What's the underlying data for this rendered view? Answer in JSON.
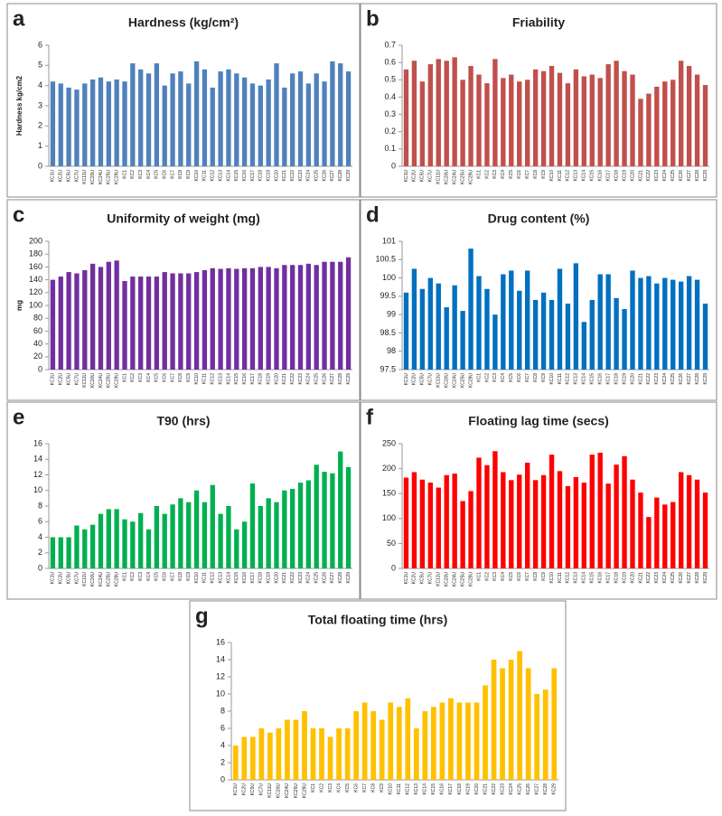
{
  "chart_data": [
    {
      "type": "bar",
      "panel": "a",
      "title": "Hardness (kg/cm²)",
      "y_label": "Hardness kg/cm2",
      "color": "#4f81bd",
      "categories": [
        "KC1U",
        "KC2U",
        "KC5U",
        "KC7U",
        "KC11U",
        "KC20U",
        "KC24U",
        "KC25U",
        "KC29U",
        "KC1",
        "KC2",
        "KC3",
        "KC4",
        "KC5",
        "KC6",
        "KC7",
        "KC8",
        "KC9",
        "KC10",
        "KC11",
        "KC12",
        "KC13",
        "KC14",
        "KC15",
        "KC16",
        "KC17",
        "KC18",
        "KC19",
        "KC20",
        "KC21",
        "KC22",
        "KC23",
        "KC24",
        "KC25",
        "KC26",
        "KC27",
        "KC28",
        "KC29"
      ],
      "values": [
        4.2,
        4.1,
        3.9,
        3.8,
        4.1,
        4.3,
        4.4,
        4.2,
        4.3,
        4.2,
        5.1,
        4.8,
        4.6,
        5.1,
        4.0,
        4.6,
        4.7,
        4.1,
        5.2,
        4.8,
        3.9,
        4.7,
        4.8,
        4.6,
        4.4,
        4.1,
        4.0,
        4.3,
        5.1,
        3.9,
        4.6,
        4.7,
        4.1,
        4.6,
        4.2,
        5.2,
        5.1,
        4.7
      ],
      "ylim": [
        0,
        6
      ],
      "yticks": [
        0,
        1,
        2,
        3,
        4,
        5,
        6
      ]
    },
    {
      "type": "bar",
      "panel": "b",
      "title": "Friability",
      "color": "#c0504d",
      "categories": [
        "KC1U",
        "KC2U",
        "KC5U",
        "KC7U",
        "KC11U",
        "KC20U",
        "KC24U",
        "KC25U",
        "KC29U",
        "KC1",
        "KC2",
        "KC3",
        "KC4",
        "KC5",
        "KC6",
        "KC7",
        "KC8",
        "KC9",
        "KC10",
        "KC11",
        "KC12",
        "KC13",
        "KC14",
        "KC15",
        "KC16",
        "KC17",
        "KC18",
        "KC19",
        "KC20",
        "KC21",
        "KC22",
        "KC23",
        "KC24",
        "KC25",
        "KC26",
        "KC27",
        "KC28",
        "KC29"
      ],
      "values": [
        0.56,
        0.61,
        0.49,
        0.59,
        0.62,
        0.61,
        0.63,
        0.5,
        0.58,
        0.53,
        0.48,
        0.62,
        0.51,
        0.53,
        0.49,
        0.5,
        0.56,
        0.55,
        0.58,
        0.54,
        0.48,
        0.56,
        0.52,
        0.53,
        0.51,
        0.59,
        0.61,
        0.55,
        0.53,
        0.39,
        0.42,
        0.46,
        0.49,
        0.5,
        0.61,
        0.58,
        0.53,
        0.47
      ],
      "ylim": [
        0,
        0.7
      ],
      "yticks": [
        0,
        0.1,
        0.2,
        0.3,
        0.4,
        0.5,
        0.6,
        0.7
      ]
    },
    {
      "type": "bar",
      "panel": "c",
      "title": "Uniformity of weight (mg)",
      "y_label": "mg",
      "color": "#7030a0",
      "categories": [
        "KC1U",
        "KC2U",
        "KC5U",
        "KC7U",
        "KC11U",
        "KC20U",
        "KC24U",
        "KC25U",
        "KC29U",
        "KC1",
        "KC2",
        "KC3",
        "KC4",
        "KC5",
        "KC6",
        "KC7",
        "KC8",
        "KC9",
        "KC10",
        "KC11",
        "KC12",
        "KC13",
        "KC14",
        "KC15",
        "KC16",
        "KC17",
        "KC18",
        "KC19",
        "KC20",
        "KC21",
        "KC22",
        "KC23",
        "KC24",
        "KC25",
        "KC26",
        "KC27",
        "KC28",
        "KC29"
      ],
      "values": [
        140,
        145,
        152,
        150,
        155,
        165,
        160,
        168,
        170,
        138,
        145,
        145,
        145,
        145,
        152,
        150,
        150,
        150,
        152,
        155,
        158,
        157,
        158,
        157,
        158,
        158,
        160,
        160,
        158,
        163,
        163,
        163,
        165,
        163,
        168,
        168,
        168,
        175
      ],
      "ylim": [
        0,
        200
      ],
      "yticks": [
        0,
        20,
        40,
        60,
        80,
        100,
        120,
        140,
        160,
        180,
        200
      ]
    },
    {
      "type": "bar",
      "panel": "d",
      "title": "Drug content (%)",
      "color": "#0070c0",
      "categories": [
        "KC1U",
        "KC2U",
        "KC5U",
        "KC7U",
        "KC11U",
        "KC20U",
        "KC24U",
        "KC25U",
        "KC29U",
        "KC1",
        "KC2",
        "KC3",
        "KC4",
        "KC5",
        "KC6",
        "KC7",
        "KC8",
        "KC9",
        "KC10",
        "KC11",
        "KC12",
        "KC13",
        "KC14",
        "KC15",
        "KC16",
        "KC17",
        "KC18",
        "KC19",
        "KC20",
        "KC21",
        "KC22",
        "KC23",
        "KC24",
        "KC25",
        "KC26",
        "KC27",
        "KC28",
        "KC29"
      ],
      "values": [
        99.6,
        100.25,
        99.7,
        100.0,
        99.85,
        99.2,
        99.8,
        99.1,
        100.8,
        100.05,
        99.7,
        99.0,
        100.1,
        100.2,
        99.65,
        100.2,
        99.4,
        99.6,
        99.4,
        100.25,
        99.3,
        100.4,
        98.8,
        99.4,
        100.1,
        100.1,
        99.45,
        99.15,
        100.2,
        100.0,
        100.05,
        99.85,
        100.0,
        99.95,
        99.9,
        100.05,
        99.95,
        99.3
      ],
      "ylim": [
        97.5,
        101
      ],
      "yticks": [
        97.5,
        98,
        98.5,
        99,
        99.5,
        100,
        100.5,
        101
      ]
    },
    {
      "type": "bar",
      "panel": "e",
      "title": "T90 (hrs)",
      "color": "#00b050",
      "categories": [
        "KC1U",
        "KC2U",
        "KC5U",
        "KC7U",
        "KC11U",
        "KC20U",
        "KC24U",
        "KC25U",
        "KC29U",
        "KC1",
        "KC2",
        "KC3",
        "KC4",
        "KC5",
        "KC6",
        "KC7",
        "KC8",
        "KC9",
        "KC10",
        "KC11",
        "KC12",
        "KC13",
        "KC14",
        "KC15",
        "KC16",
        "KC17",
        "KC18",
        "KC19",
        "KC20",
        "KC21",
        "KC22",
        "KC23",
        "KC24",
        "KC25",
        "KC26",
        "KC27",
        "KC28",
        "KC29"
      ],
      "values": [
        4,
        4,
        4,
        5.5,
        5,
        5.6,
        7,
        7.6,
        7.6,
        6.3,
        6,
        7.1,
        5,
        8,
        7,
        8.2,
        9,
        8.5,
        10,
        8.5,
        10.7,
        7,
        8,
        5,
        6,
        10.9,
        8,
        9,
        8.5,
        10,
        10.2,
        11,
        11.3,
        13.3,
        12.4,
        12.2,
        15,
        13
      ],
      "ylim": [
        0,
        16
      ],
      "yticks": [
        0,
        2,
        4,
        6,
        8,
        10,
        12,
        14,
        16
      ]
    },
    {
      "type": "bar",
      "panel": "f",
      "title": "Floating lag time (secs)",
      "color": "#ff0000",
      "categories": [
        "KC1U",
        "KC2U",
        "KC5U",
        "KC7U",
        "KC11U",
        "KC20U",
        "KC24U",
        "KC25U",
        "KC29U",
        "KC1",
        "KC2",
        "KC3",
        "KC4",
        "KC5",
        "KC6",
        "KC7",
        "KC8",
        "KC9",
        "KC10",
        "KC11",
        "KC12",
        "KC13",
        "KC14",
        "KC15",
        "KC16",
        "KC17",
        "KC18",
        "KC19",
        "KC20",
        "KC21",
        "KC22",
        "KC23",
        "KC24",
        "KC25",
        "KC26",
        "KC27",
        "KC28",
        "KC29"
      ],
      "values": [
        182,
        193,
        178,
        172,
        162,
        187,
        190,
        135,
        155,
        222,
        207,
        235,
        193,
        177,
        188,
        212,
        177,
        187,
        228,
        195,
        165,
        183,
        172,
        228,
        232,
        170,
        208,
        225,
        178,
        152,
        103,
        142,
        128,
        133,
        193,
        187,
        178,
        152
      ],
      "ylim": [
        0,
        250
      ],
      "yticks": [
        0,
        50,
        100,
        150,
        200,
        250
      ]
    },
    {
      "type": "bar",
      "panel": "g",
      "title": "Total floating time (hrs)",
      "color": "#ffc000",
      "categories": [
        "KC1U",
        "KC2U",
        "KC5U",
        "KC7U",
        "KC11U",
        "KC20U",
        "KC24U",
        "KC25U",
        "KC29U",
        "KC1",
        "KC2",
        "KC3",
        "KC4",
        "KC5",
        "KC6",
        "KC7",
        "KC8",
        "KC9",
        "KC10",
        "KC11",
        "KC12",
        "KC13",
        "KC14",
        "KC15",
        "KC16",
        "KC17",
        "KC18",
        "KC19",
        "KC20",
        "KC21",
        "KC22",
        "KC23",
        "KC24",
        "KC25",
        "KC26",
        "KC27",
        "KC28",
        "KC29"
      ],
      "values": [
        4,
        5,
        5,
        6,
        5.5,
        6,
        7,
        7,
        8,
        6,
        6,
        5,
        6,
        6,
        8,
        9,
        8,
        7,
        9,
        8.5,
        9.5,
        6,
        8,
        8.5,
        9,
        9.5,
        9,
        9,
        9,
        11,
        14,
        13,
        14,
        15,
        13,
        10,
        10.5,
        13
      ],
      "ylim": [
        0,
        16
      ],
      "yticks": [
        0,
        2,
        4,
        6,
        8,
        10,
        12,
        14,
        16
      ]
    }
  ]
}
